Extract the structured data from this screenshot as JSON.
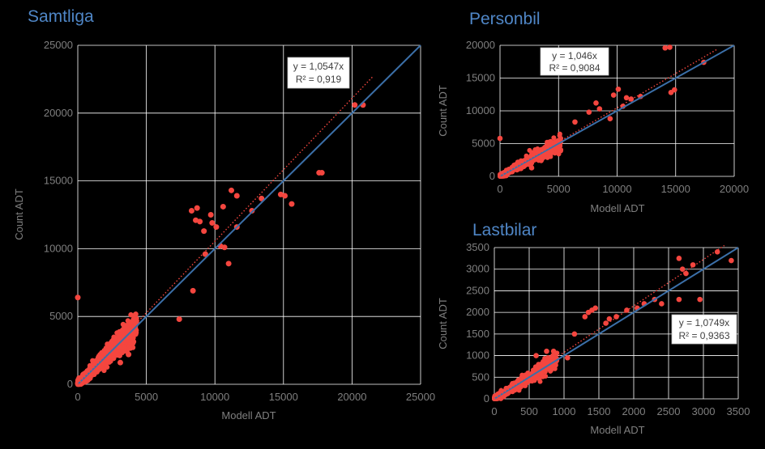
{
  "colors": {
    "background": "#000000",
    "title": "#4f86c6",
    "grid": "#ffffff",
    "points": "#f4463f",
    "identity_line": "#3b6fa8",
    "trendline": "#f4463f",
    "tick_text": "#7f7f7f"
  },
  "chart_data": [
    {
      "type": "scatter",
      "title": "Samtliga",
      "xlabel": "Modell ADT",
      "ylabel": "Count ADT",
      "xlim": [
        0,
        25000
      ],
      "ylim": [
        0,
        25000
      ],
      "xticks": [
        0,
        5000,
        10000,
        15000,
        20000,
        25000
      ],
      "yticks": [
        0,
        5000,
        10000,
        15000,
        20000,
        25000
      ],
      "grid": true,
      "identity_line": [
        [
          0,
          0
        ],
        [
          25000,
          25000
        ]
      ],
      "trendline": {
        "slope": 1.0547,
        "x_range": [
          0,
          21500
        ]
      },
      "equation": {
        "line1": "y = 1,0547x",
        "line2": "R² = 0,919",
        "placement": "top-right"
      },
      "outliers": [
        [
          20200,
          20600
        ],
        [
          20800,
          20600
        ],
        [
          17600,
          15600
        ],
        [
          17800,
          15600
        ],
        [
          15100,
          13900
        ],
        [
          15600,
          13300
        ],
        [
          14800,
          14000
        ],
        [
          13400,
          13700
        ],
        [
          12700,
          12800
        ],
        [
          11200,
          14300
        ],
        [
          11600,
          13900
        ],
        [
          10600,
          13100
        ],
        [
          9700,
          12500
        ],
        [
          8700,
          13000
        ],
        [
          8600,
          12100
        ],
        [
          8300,
          12800
        ],
        [
          8900,
          12000
        ],
        [
          11000,
          8900
        ],
        [
          10400,
          10200
        ],
        [
          9200,
          11300
        ],
        [
          9800,
          11900
        ],
        [
          10100,
          11600
        ],
        [
          10700,
          10100
        ],
        [
          0,
          6400
        ],
        [
          3100,
          1600
        ],
        [
          3700,
          2200
        ],
        [
          7400,
          4800
        ],
        [
          8400,
          6900
        ],
        [
          9300,
          9600
        ],
        [
          11600,
          11600
        ]
      ]
    },
    {
      "type": "scatter",
      "title": "Personbil",
      "xlabel": "Modell ADT",
      "ylabel": "Count ADT",
      "xlim": [
        0,
        20000
      ],
      "ylim": [
        0,
        20000
      ],
      "xticks": [
        0,
        5000,
        10000,
        15000,
        20000
      ],
      "yticks": [
        0,
        5000,
        10000,
        15000,
        20000
      ],
      "grid": true,
      "identity_line": [
        [
          0,
          0
        ],
        [
          20000,
          20000
        ]
      ],
      "trendline": {
        "slope": 1.046,
        "x_range": [
          0,
          18600
        ]
      },
      "equation": {
        "line1": "y = 1,046x",
        "line2": "R² = 0,9084",
        "placement": "top-center"
      },
      "outliers": [
        [
          14100,
          19600
        ],
        [
          14500,
          19700
        ],
        [
          17400,
          17400
        ],
        [
          14600,
          12800
        ],
        [
          14900,
          13200
        ],
        [
          10100,
          13300
        ],
        [
          11200,
          11800
        ],
        [
          12000,
          12200
        ],
        [
          9700,
          12400
        ],
        [
          8500,
          10300
        ],
        [
          10500,
          10700
        ],
        [
          8200,
          11200
        ],
        [
          7600,
          9800
        ],
        [
          6400,
          8300
        ],
        [
          0,
          5800
        ],
        [
          2700,
          1300
        ],
        [
          9400,
          8800
        ],
        [
          10800,
          12000
        ]
      ]
    },
    {
      "type": "scatter",
      "title": "Lastbilar",
      "xlabel": "Modell ADT",
      "ylabel": "Count ADT",
      "xlim": [
        0,
        3500
      ],
      "ylim": [
        0,
        3500
      ],
      "xticks": [
        0,
        500,
        1000,
        1500,
        2000,
        2500,
        3000,
        3500
      ],
      "yticks": [
        0,
        500,
        1000,
        1500,
        2000,
        2500,
        3000,
        3500
      ],
      "grid": true,
      "identity_line": [
        [
          0,
          0
        ],
        [
          3500,
          3500
        ]
      ],
      "trendline": {
        "slope": 1.0749,
        "x_range": [
          0,
          3300
        ]
      },
      "equation": {
        "line1": "y = 1,0749x",
        "line2": "R² = 0,9363",
        "placement": "right"
      },
      "outliers": [
        [
          3200,
          3400
        ],
        [
          3400,
          3200
        ],
        [
          2850,
          3100
        ],
        [
          2650,
          3250
        ],
        [
          2700,
          3000
        ],
        [
          2750,
          2900
        ],
        [
          2650,
          2300
        ],
        [
          2400,
          2200
        ],
        [
          2300,
          2300
        ],
        [
          1450,
          2100
        ],
        [
          1400,
          2050
        ],
        [
          1350,
          2000
        ],
        [
          1300,
          1900
        ],
        [
          1150,
          1500
        ],
        [
          1050,
          950
        ],
        [
          850,
          1100
        ],
        [
          750,
          1100
        ],
        [
          600,
          1000
        ],
        [
          1900,
          2050
        ],
        [
          2050,
          2100
        ],
        [
          2150,
          2200
        ],
        [
          1650,
          1850
        ],
        [
          1750,
          1900
        ],
        [
          1600,
          1750
        ],
        [
          2950,
          2300
        ]
      ]
    }
  ]
}
